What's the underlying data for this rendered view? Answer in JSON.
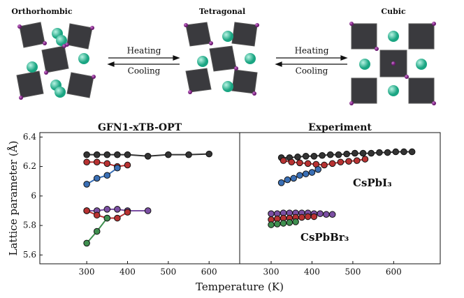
{
  "diagram": {
    "phases": [
      "Orthorhombic",
      "Tetragonal",
      "Cubic"
    ],
    "transitions": [
      {
        "forward": "Heating",
        "backward": "Cooling"
      },
      {
        "forward": "Heating",
        "backward": "Cooling"
      }
    ]
  },
  "axis_labels": {
    "x": "Temperature (K)",
    "y": "Lattice parameter (Å)"
  },
  "chart_data": [
    {
      "type": "line",
      "title": "GFN1-xTB-OPT",
      "xlim": [
        185,
        675
      ],
      "xticks": [
        300,
        400,
        500,
        600
      ],
      "ylim": [
        5.54,
        6.43
      ],
      "yticks": [
        {
          "value": 5.6,
          "label": "5.6"
        },
        {
          "value": 5.8,
          "label": "5.8"
        },
        {
          "value": 6.0,
          "label": "6"
        },
        {
          "value": 6.2,
          "label": "6.2"
        },
        {
          "value": 6.4,
          "label": "6.4"
        }
      ],
      "series": [
        {
          "color": "#333333",
          "x": [
            300,
            325,
            350,
            375,
            400,
            450,
            500,
            550,
            600
          ],
          "values": [
            6.28,
            6.28,
            6.28,
            6.28,
            6.28,
            6.27,
            6.28,
            6.28,
            6.285
          ]
        },
        {
          "color": "#b83232",
          "x": [
            300,
            325,
            350,
            375,
            400
          ],
          "values": [
            6.23,
            6.23,
            6.22,
            6.2,
            6.21
          ]
        },
        {
          "color": "#3a6fb5",
          "x": [
            300,
            325,
            350,
            375
          ],
          "values": [
            6.08,
            6.12,
            6.14,
            6.19
          ]
        },
        {
          "color": "#7b4fa3",
          "x": [
            300,
            325,
            350,
            375,
            400,
            450
          ],
          "values": [
            5.9,
            5.9,
            5.91,
            5.91,
            5.9,
            5.9
          ]
        },
        {
          "color": "#b83232",
          "x": [
            300,
            325,
            350,
            375,
            400
          ],
          "values": [
            5.9,
            5.87,
            5.85,
            5.85,
            5.89
          ]
        },
        {
          "color": "#3f8f4f",
          "x": [
            300,
            325,
            350
          ],
          "values": [
            5.68,
            5.76,
            5.85
          ]
        }
      ]
    },
    {
      "type": "line",
      "title": "Experiment",
      "xlim": [
        223,
        714
      ],
      "xticks": [
        300,
        400,
        500,
        600
      ],
      "ylim": [
        5.54,
        6.43
      ],
      "annotations": [
        "CsPbI₃",
        "CsPbBr₃"
      ],
      "series": [
        {
          "color": "#333333",
          "x": [
            325,
            345,
            365,
            385,
            405,
            425,
            445,
            465,
            485,
            505,
            525,
            545,
            565,
            585,
            605,
            625,
            645
          ],
          "values": [
            6.26,
            6.26,
            6.265,
            6.27,
            6.27,
            6.275,
            6.28,
            6.28,
            6.285,
            6.29,
            6.29,
            6.29,
            6.295,
            6.295,
            6.3,
            6.3,
            6.3
          ]
        },
        {
          "color": "#b83232",
          "x": [
            330,
            350,
            370,
            390,
            410,
            430,
            450,
            470,
            490,
            510,
            530
          ],
          "values": [
            6.24,
            6.23,
            6.225,
            6.22,
            6.215,
            6.21,
            6.22,
            6.23,
            6.235,
            6.24,
            6.25
          ]
        },
        {
          "color": "#3a6fb5",
          "x": [
            325,
            340,
            355,
            370,
            385,
            400,
            415
          ],
          "values": [
            6.09,
            6.11,
            6.12,
            6.14,
            6.15,
            6.16,
            6.18
          ]
        },
        {
          "color": "#7b4fa3",
          "x": [
            300,
            315,
            330,
            345,
            360,
            375,
            390,
            405,
            420,
            435,
            450
          ],
          "values": [
            5.88,
            5.88,
            5.885,
            5.885,
            5.885,
            5.885,
            5.885,
            5.88,
            5.88,
            5.875,
            5.875
          ]
        },
        {
          "color": "#b83232",
          "x": [
            300,
            315,
            330,
            345,
            360,
            375,
            390,
            405
          ],
          "values": [
            5.84,
            5.845,
            5.85,
            5.85,
            5.855,
            5.855,
            5.86,
            5.86
          ]
        },
        {
          "color": "#3f8f4f",
          "x": [
            300,
            315,
            330,
            345,
            360
          ],
          "values": [
            5.805,
            5.81,
            5.815,
            5.82,
            5.825
          ]
        }
      ]
    }
  ]
}
